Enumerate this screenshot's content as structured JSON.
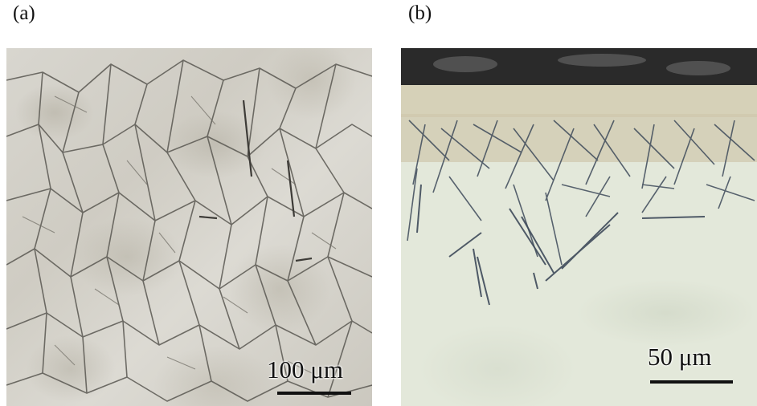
{
  "panels": [
    {
      "label": "(a)",
      "scale_bar": "100 μm"
    },
    {
      "label": "(b)",
      "scale_bar": "50 μm"
    }
  ],
  "colors": {
    "panel_a_background": "#d4d1c9",
    "grain_boundary": "#5a5852",
    "panel_b_matrix": "#e3e8da",
    "panel_b_mounting_resin": "#2a2a2a",
    "needle_outline": "#3e4a5a"
  }
}
